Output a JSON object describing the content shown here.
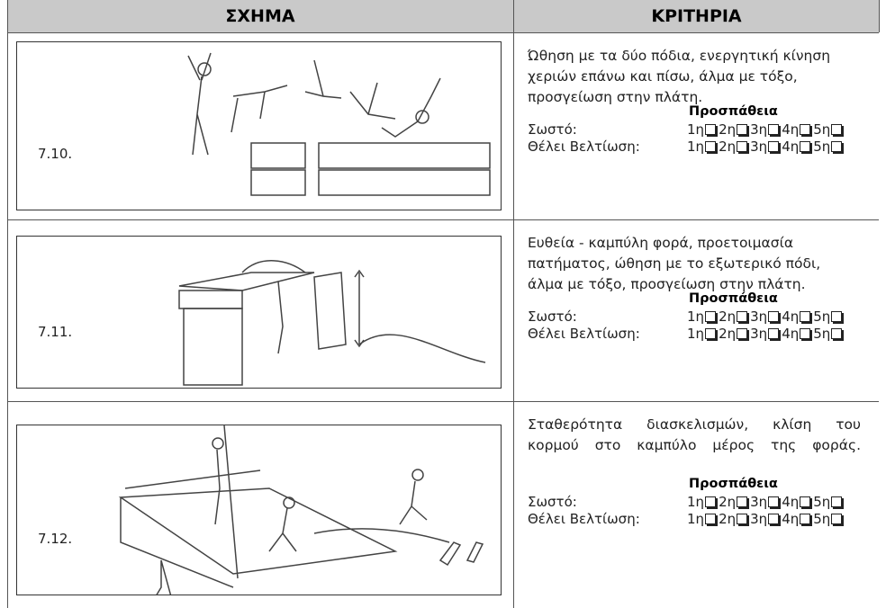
{
  "header": {
    "col1": "ΣΧΗΜΑ",
    "col2": "ΚΡΙΤΗΡΙΑ"
  },
  "rows": [
    {
      "figure": "7.10.",
      "criteria": [
        "Ώθηση με τα δύο πόδια, ενεργητική κίνηση",
        "χεριών επάνω και πίσω, άλμα με τόξο,",
        "προσγείωση στην πλάτη."
      ],
      "attempts": "Προσπάθεια",
      "correct": "Σωστό:",
      "improve": "Θέλει Βελτίωση:",
      "slots": [
        "1η",
        "2η",
        "3η",
        "4η",
        "5η"
      ]
    },
    {
      "figure": "7.11.",
      "criteria": [
        "Ευθεία - καμπύλη φορά, προετοιμασία",
        "πατήματος, ώθηση με το εξωτερικό πόδι,",
        "άλμα με τόξο, προσγείωση στην πλάτη."
      ],
      "attempts": "Προσπάθεια",
      "correct": "Σωστό:",
      "improve": "Θέλει Βελτίωση:",
      "slots": [
        "1η",
        "2η",
        "3η",
        "4η",
        "5η"
      ]
    },
    {
      "figure": "7.12.",
      "criteria": [
        "Σταθερότητα διασκελισμών, κλίση του",
        "κορμού στο καμπύλο μέρος της φοράς."
      ],
      "attempts": "Προσπάθεια",
      "correct": "Σωστό:",
      "improve": "Θέλει Βελτίωση:",
      "slots": [
        "1η",
        "2η",
        "3η",
        "4η",
        "5η"
      ]
    }
  ]
}
